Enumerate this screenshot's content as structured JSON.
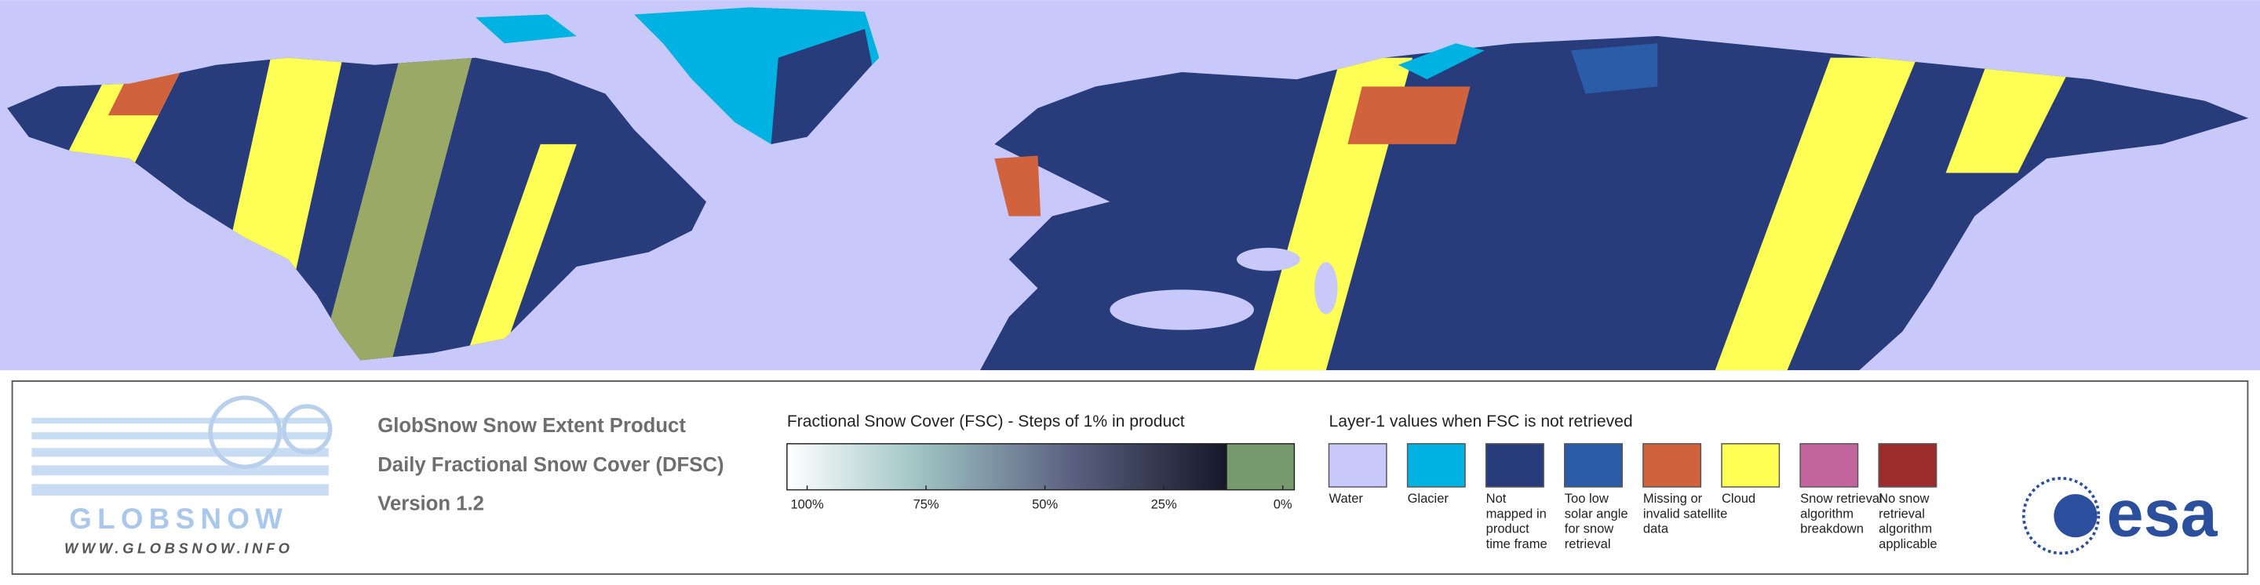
{
  "logo": {
    "name": "GLOBSNOW",
    "url": "WWW.GLOBSNOW.INFO"
  },
  "product": {
    "lines": [
      "GlobSnow Snow Extent Product",
      "Daily Fractional Snow Cover (DFSC)",
      "Version 1.2"
    ]
  },
  "fsc_scale": {
    "title": "Fractional Snow Cover (FSC) - Steps of 1% in product",
    "ticks": [
      {
        "value": 100,
        "label": "100%"
      },
      {
        "value": 75,
        "label": "75%"
      },
      {
        "value": 50,
        "label": "50%"
      },
      {
        "value": 25,
        "label": "25%"
      },
      {
        "value": 0,
        "label": "0%"
      }
    ],
    "no_snow_color": "#769a6e"
  },
  "layer1": {
    "title": "Layer-1 values when FSC is not retrieved",
    "items": [
      {
        "color": "#c8c8fa",
        "lines": [
          "Water"
        ]
      },
      {
        "color": "#00b2e2",
        "lines": [
          "Glacier"
        ]
      },
      {
        "color": "#283c7c",
        "lines": [
          "Not",
          "mapped in",
          "product",
          "time frame"
        ]
      },
      {
        "color": "#2a5ca8",
        "lines": [
          "Too low",
          "solar angle",
          "for snow",
          "retrieval"
        ]
      },
      {
        "color": "#d0623e",
        "lines": [
          "Missing or",
          "invalid satellite",
          "data"
        ]
      },
      {
        "color": "#ffff55",
        "lines": [
          "Cloud"
        ]
      },
      {
        "color": "#c2649e",
        "lines": [
          "Snow retrieval",
          "algorithm",
          "breakdown"
        ]
      },
      {
        "color": "#9c2c2c",
        "lines": [
          "No snow",
          "retrieval",
          "algorithm",
          "applicable"
        ]
      }
    ]
  },
  "agency": {
    "name": "esa"
  }
}
